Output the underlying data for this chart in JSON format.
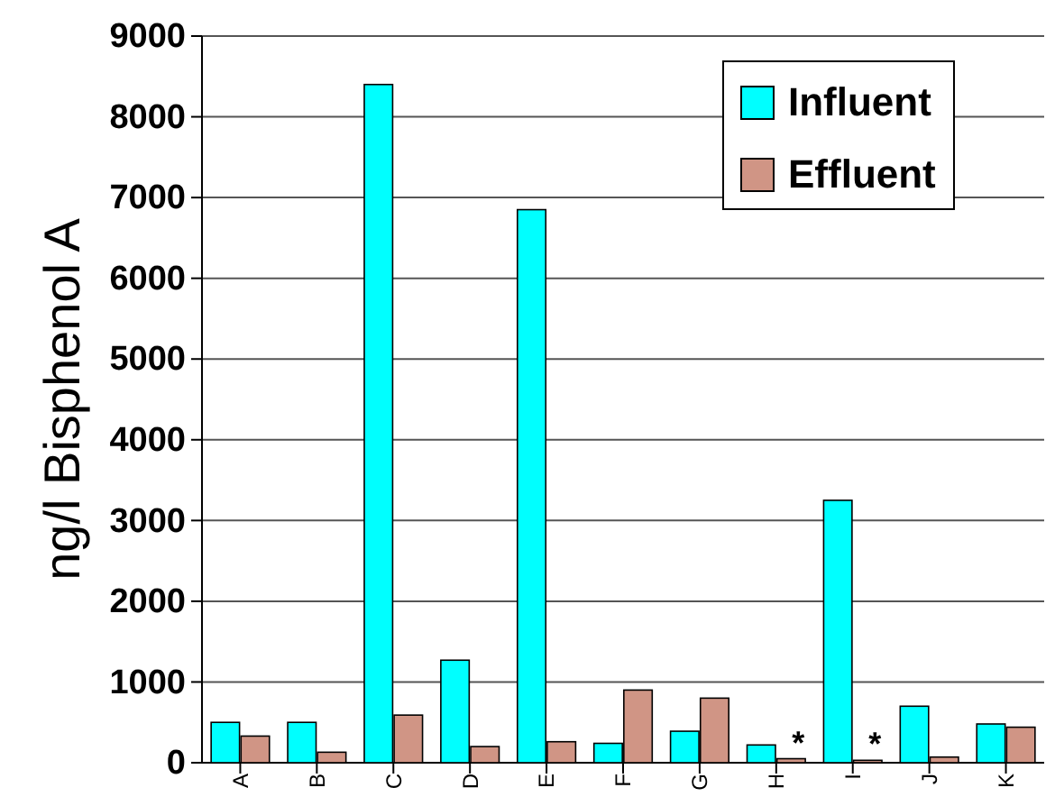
{
  "chart_data": {
    "type": "bar",
    "ylabel": "ng/l Bisphenol A",
    "categories": [
      "A",
      "B",
      "C",
      "D",
      "E",
      "F",
      "G",
      "H",
      "I",
      "J",
      "K"
    ],
    "series": [
      {
        "name": "Influent",
        "color": "#00ffff",
        "values": [
          500,
          500,
          8400,
          1270,
          6850,
          240,
          390,
          220,
          3250,
          700,
          480
        ]
      },
      {
        "name": "Effluent",
        "color": "#d09585",
        "values": [
          330,
          130,
          590,
          200,
          260,
          900,
          800,
          50,
          30,
          70,
          440
        ]
      }
    ],
    "ylim": [
      0,
      9000
    ],
    "yticks": [
      0,
      1000,
      2000,
      3000,
      4000,
      5000,
      6000,
      7000,
      8000,
      9000
    ],
    "grid": "y",
    "legend": "top right",
    "annotations": [
      {
        "text": "*",
        "x": "H"
      },
      {
        "text": "*",
        "x": "I"
      }
    ]
  }
}
